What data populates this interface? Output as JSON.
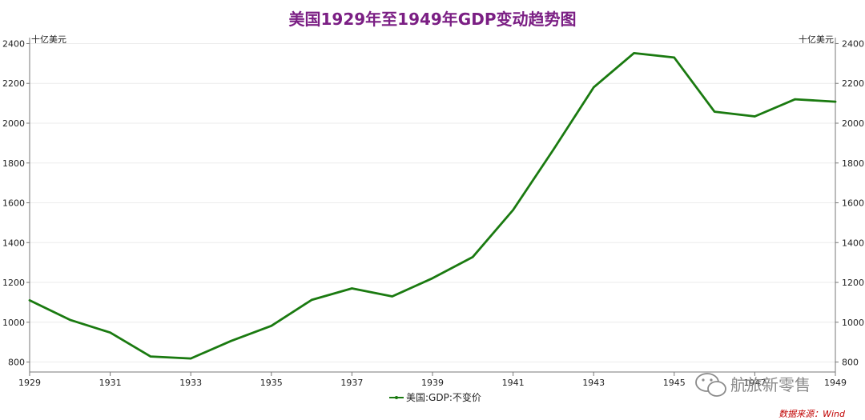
{
  "chart_data": {
    "type": "line",
    "title": "美国1929年至1949年GDP变动趋势图",
    "xlabel": "",
    "ylabel": "十亿美元",
    "ylabel_right": "十亿美元",
    "x": [
      1929,
      1930,
      1931,
      1932,
      1933,
      1934,
      1935,
      1936,
      1937,
      1938,
      1939,
      1940,
      1941,
      1942,
      1943,
      1944,
      1945,
      1946,
      1947,
      1948,
      1949
    ],
    "x_tick_labels": [
      "1929",
      "1931",
      "1933",
      "1935",
      "1937",
      "1939",
      "1941",
      "1943",
      "1945",
      "1947",
      "1949"
    ],
    "x_tick_values": [
      1929,
      1931,
      1933,
      1935,
      1937,
      1939,
      1941,
      1943,
      1945,
      1947,
      1949
    ],
    "y_ticks": [
      800,
      1000,
      1200,
      1400,
      1600,
      1800,
      2000,
      2200,
      2400
    ],
    "ylim": [
      750,
      2430
    ],
    "grid": true,
    "legend_position": "bottom-center",
    "series": [
      {
        "name": "美国:GDP:不变价",
        "values": [
          1110,
          1012,
          948,
          828,
          818,
          906,
          982,
          1112,
          1170,
          1130,
          1221,
          1328,
          1564,
          1867,
          2180,
          2352,
          2330,
          2058,
          2034,
          2120,
          2108
        ]
      }
    ],
    "source": "数据来源：Wind",
    "watermark": "航旅新零售",
    "colors": {
      "line": "#1a7a10",
      "title": "#7b1f84",
      "source": "#c00000",
      "grid": "#ebebeb",
      "axis": "#777777"
    }
  }
}
